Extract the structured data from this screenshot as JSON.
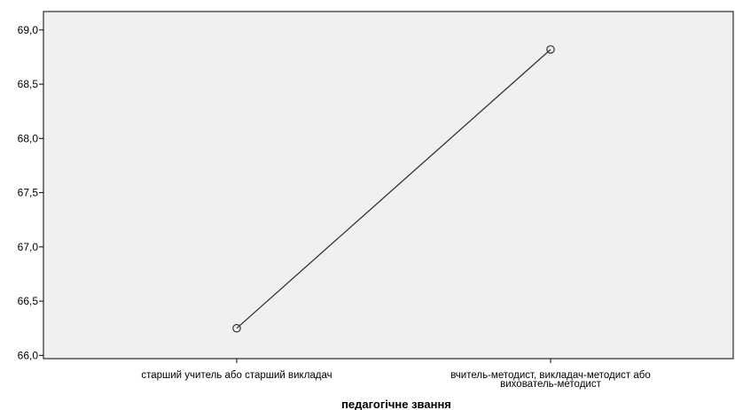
{
  "chart_data": {
    "type": "line",
    "title": "",
    "xlabel": "педагогічне звання",
    "ylabel": "",
    "categories": [
      [
        "старший учитель або старший викладач"
      ],
      [
        "вчитель-методист, викладач-методист або",
        "вихователь-методист"
      ]
    ],
    "series": [
      {
        "values": [
          66.25,
          68.82
        ]
      }
    ],
    "ylim": [
      65.97,
      69.17
    ],
    "yticks": [
      66.0,
      66.5,
      67.0,
      67.5,
      68.0,
      68.5,
      69.0
    ],
    "ytick_labels": [
      "66,0",
      "66,5",
      "67,0",
      "67,5",
      "68,0",
      "68,5",
      "69,0"
    ],
    "grid": false,
    "legend": "none",
    "colors": {
      "plot_background": "#f0f0f0",
      "line": "#333333",
      "axis": "#000000"
    }
  }
}
